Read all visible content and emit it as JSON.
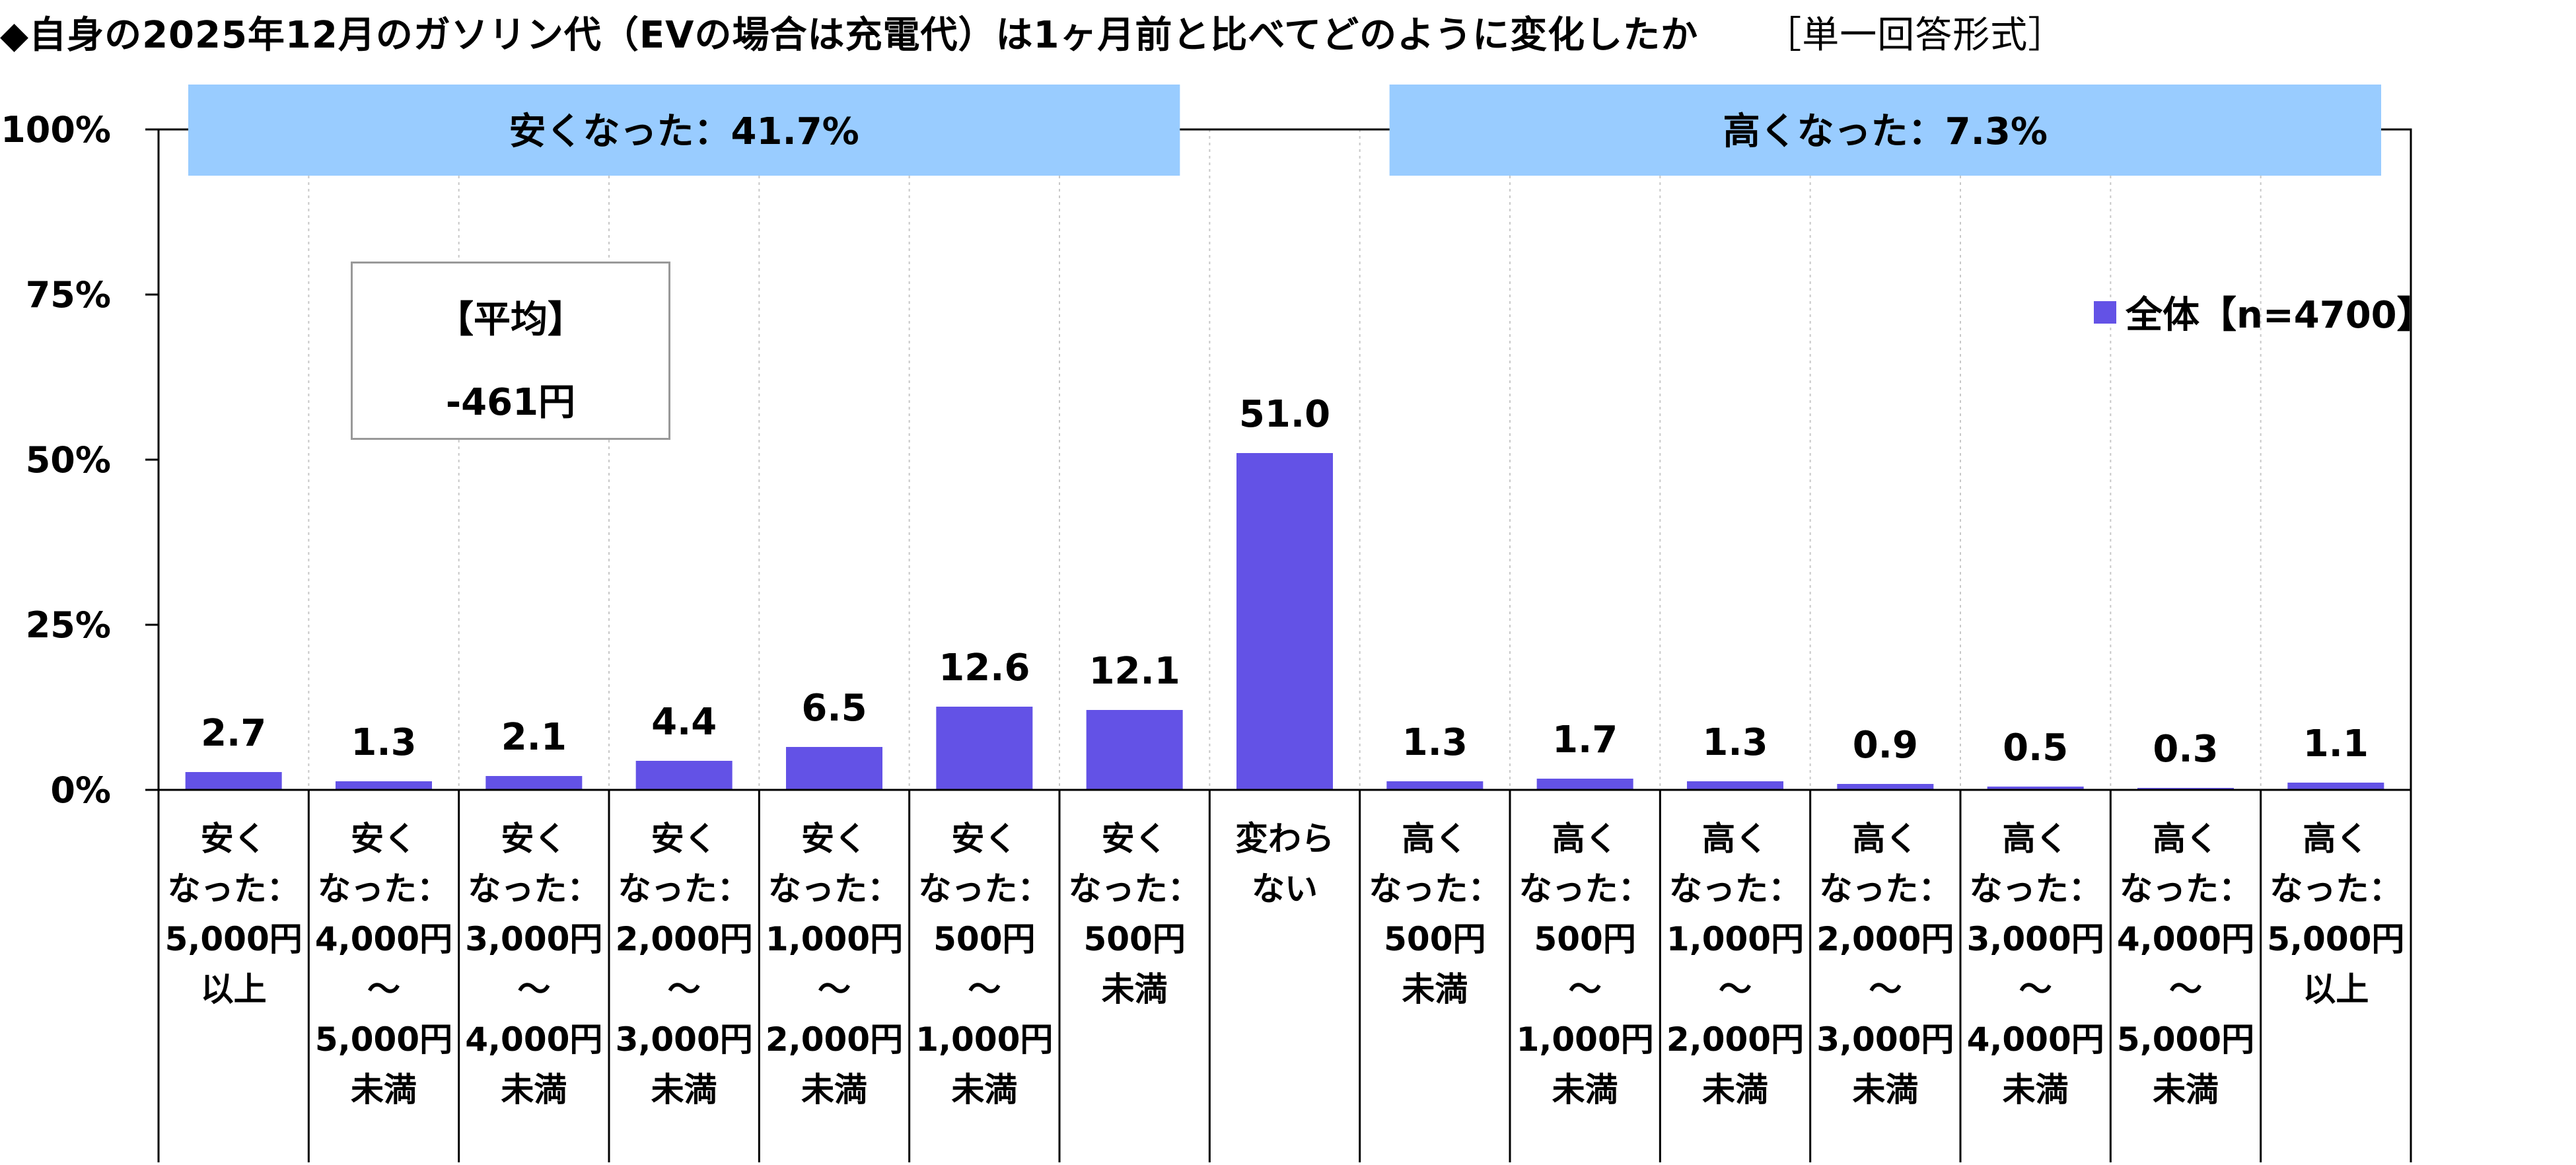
{
  "title": "◆自身の2025年12月のガソリン代（EVの場合は充電代）は1ヶ月前と比べてどのように変化したか",
  "answer_format": "［単一回答形式］",
  "bands": [
    {
      "label": "安くなった：41.7%",
      "from": 0,
      "to": 6
    },
    {
      "label": "高くなった：7.3%",
      "from": 8,
      "to": 14
    }
  ],
  "average_box": {
    "heading": "【平均】",
    "value": "-461円"
  },
  "legend": {
    "label": "全体【n=4700】",
    "color": "#6352E6"
  },
  "chart_data": {
    "type": "bar",
    "ylim": [
      0,
      100
    ],
    "yticks": [
      "0%",
      "25%",
      "50%",
      "75%",
      "100%"
    ],
    "categories": [
      [
        "安く",
        "なった：",
        "5,000円",
        "以上"
      ],
      [
        "安く",
        "なった：",
        "4,000円",
        "～",
        "5,000円",
        "未満"
      ],
      [
        "安く",
        "なった：",
        "3,000円",
        "～",
        "4,000円",
        "未満"
      ],
      [
        "安く",
        "なった：",
        "2,000円",
        "～",
        "3,000円",
        "未満"
      ],
      [
        "安く",
        "なった：",
        "1,000円",
        "～",
        "2,000円",
        "未満"
      ],
      [
        "安く",
        "なった：",
        "500円",
        "～",
        "1,000円",
        "未満"
      ],
      [
        "安く",
        "なった：",
        "500円",
        "未満"
      ],
      [
        "変わら",
        "ない"
      ],
      [
        "高く",
        "なった：",
        "500円",
        "未満"
      ],
      [
        "高く",
        "なった：",
        "500円",
        "～",
        "1,000円",
        "未満"
      ],
      [
        "高く",
        "なった：",
        "1,000円",
        "～",
        "2,000円",
        "未満"
      ],
      [
        "高く",
        "なった：",
        "2,000円",
        "～",
        "3,000円",
        "未満"
      ],
      [
        "高く",
        "なった：",
        "3,000円",
        "～",
        "4,000円",
        "未満"
      ],
      [
        "高く",
        "なった：",
        "4,000円",
        "～",
        "5,000円",
        "未満"
      ],
      [
        "高く",
        "なった：",
        "5,000円",
        "以上"
      ]
    ],
    "values": [
      2.7,
      1.3,
      2.1,
      4.4,
      6.5,
      12.6,
      12.1,
      51.0,
      1.3,
      1.7,
      1.3,
      0.9,
      0.5,
      0.3,
      1.1
    ],
    "series_color": "#6352E6",
    "band_color": "#99CCFF",
    "grid": "vertical-dotted"
  }
}
